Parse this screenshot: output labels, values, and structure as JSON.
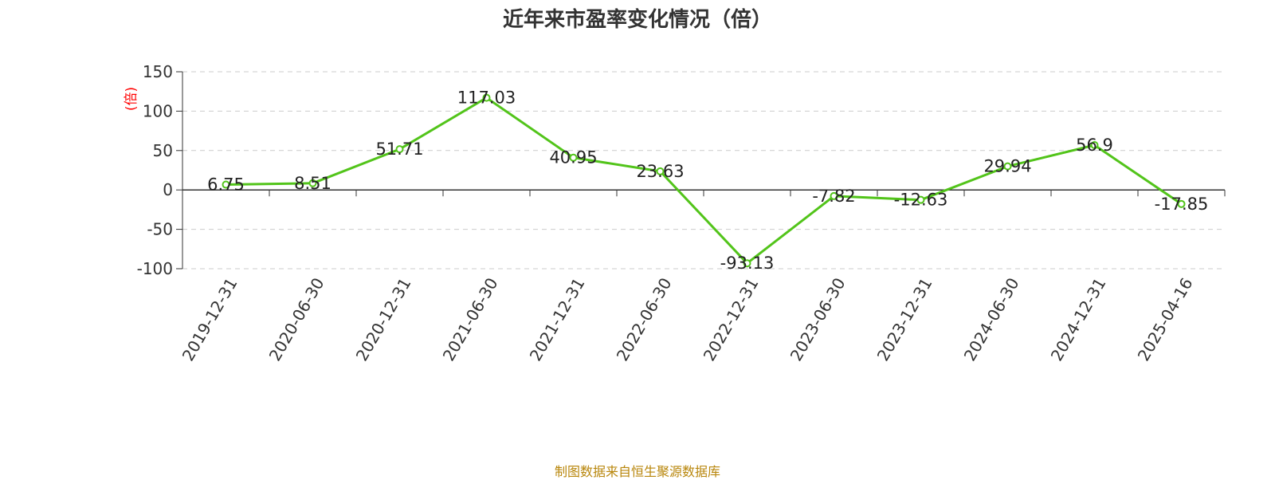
{
  "colors": {
    "line": "#52c41a",
    "axis": "#333333",
    "grid": "#cccccc",
    "ylabel": "#ff0000",
    "source": "#b8860b"
  },
  "chart_data": {
    "type": "line",
    "title": "近年来市盈率变化情况（倍）",
    "ylabel": "(倍)",
    "xlabel": "",
    "ylim": [
      -100,
      150
    ],
    "yticks": [
      150,
      100,
      50,
      0,
      -50,
      -100
    ],
    "grid": true,
    "categories": [
      "2019-12-31",
      "2020-06-30",
      "2020-12-31",
      "2021-06-30",
      "2021-12-31",
      "2022-06-30",
      "2022-12-31",
      "2023-06-30",
      "2023-12-31",
      "2024-06-30",
      "2024-12-31",
      "2025-04-16"
    ],
    "values": [
      6.75,
      8.51,
      51.71,
      117.03,
      40.95,
      23.63,
      -93.13,
      -7.82,
      -12.63,
      29.94,
      56.9,
      -17.85
    ],
    "value_labels": [
      "6.75",
      "8.51",
      "51.71",
      "117.03",
      "40.95",
      "23.63",
      "-93.13",
      "-7.82",
      "-12.63",
      "29.94",
      "56.9",
      "-17.85"
    ]
  },
  "footer": {
    "source": "制图数据来自恒生聚源数据库"
  }
}
